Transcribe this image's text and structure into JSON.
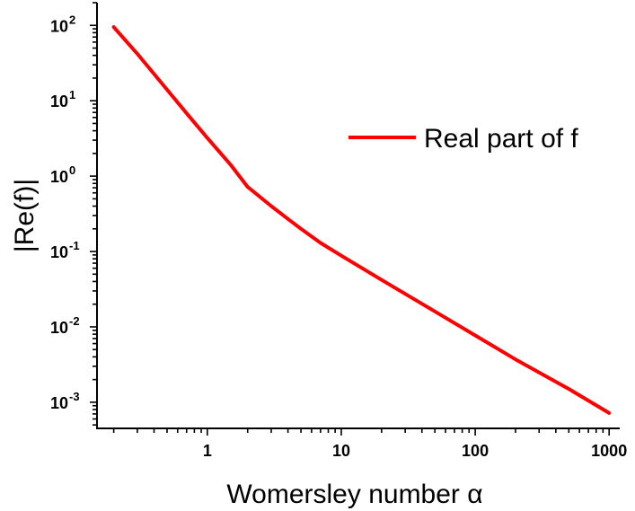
{
  "chart_data": {
    "type": "line",
    "xlabel": "Womersley number α",
    "ylabel": "|Re(f)|",
    "x_scale": "log",
    "y_scale": "log",
    "xlim": [
      0.15,
      1200
    ],
    "ylim": [
      0.00045,
      200
    ],
    "x_ticks": [
      {
        "value": 1,
        "label": "1"
      },
      {
        "value": 10,
        "label": "10"
      },
      {
        "value": 100,
        "label": "100"
      },
      {
        "value": 1000,
        "label": "1000"
      }
    ],
    "y_ticks": [
      {
        "value": 100,
        "base": "10",
        "exp": "2"
      },
      {
        "value": 10,
        "base": "10",
        "exp": "1"
      },
      {
        "value": 1,
        "base": "10",
        "exp": "0"
      },
      {
        "value": 0.1,
        "base": "10",
        "exp": "-1"
      },
      {
        "value": 0.01,
        "base": "10",
        "exp": "-2"
      },
      {
        "value": 0.001,
        "base": "10",
        "exp": "-3"
      }
    ],
    "legend_position": "top-right",
    "series": [
      {
        "name": "Real part of f",
        "color": "#ff0000",
        "x": [
          0.2,
          0.3,
          0.5,
          0.7,
          1,
          1.5,
          2,
          3,
          4,
          5,
          7,
          10,
          20,
          50,
          100,
          200,
          500,
          1000
        ],
        "y": [
          95,
          42,
          14,
          6.8,
          3.2,
          1.4,
          0.72,
          0.4,
          0.27,
          0.2,
          0.13,
          0.088,
          0.042,
          0.016,
          0.0077,
          0.0037,
          0.0015,
          0.00072
        ]
      }
    ]
  }
}
